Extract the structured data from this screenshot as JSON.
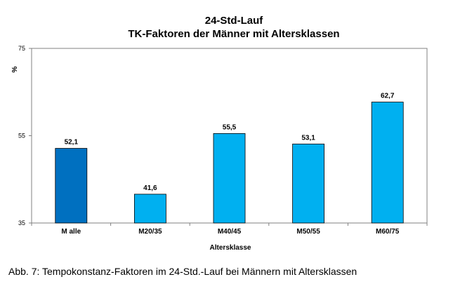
{
  "chart_data": {
    "type": "bar",
    "title_line1": "24-Std-Lauf",
    "title_line2": "TK-Faktoren der Männer mit Altersklassen",
    "xlabel": "Altersklasse",
    "ylabel": "%",
    "ylim": [
      35,
      75
    ],
    "yticks": [
      35,
      55,
      75
    ],
    "ytick_labels": [
      "35",
      "55",
      "75"
    ],
    "grid": false,
    "legend": "none",
    "categories": [
      "M alle",
      "M20/35",
      "M40/45",
      "M50/55",
      "M60/75"
    ],
    "values": [
      52.1,
      41.6,
      55.5,
      53.1,
      62.7
    ],
    "value_labels": [
      "52,1",
      "41,6",
      "55,5",
      "53,1",
      "62,7"
    ],
    "bar_colors": [
      "#0070C0",
      "#00B0F0",
      "#00B0F0",
      "#00B0F0",
      "#00B0F0"
    ]
  },
  "caption": "Abb. 7: Tempokonstanz-Faktoren im 24-Std.-Lauf bei Männern mit Altersklassen"
}
